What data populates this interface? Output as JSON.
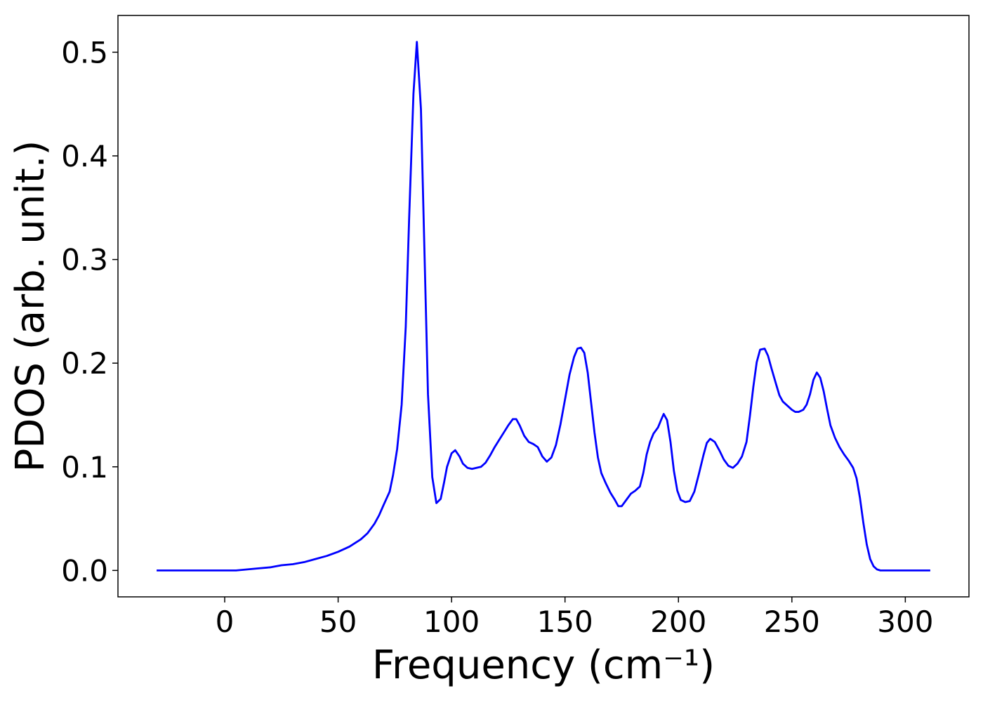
{
  "chart_data": {
    "type": "line",
    "xlabel": "Frequency (cm⁻¹)",
    "ylabel": "PDOS (arb. unit.)",
    "x": [
      -30,
      -20,
      -10,
      0,
      5,
      10,
      15,
      20,
      25,
      30,
      35,
      40,
      45,
      50,
      55,
      60,
      63,
      66,
      68,
      70,
      72.7,
      74.2,
      76,
      78,
      79.8,
      81.3,
      83.2,
      84.7,
      86.5,
      89.6,
      91.5,
      93.3,
      95.2,
      96.7,
      98,
      100,
      101.6,
      103.5,
      105,
      107,
      109,
      111,
      113,
      115,
      117,
      119,
      121,
      123,
      125,
      127,
      128.5,
      130,
      132,
      134,
      136,
      138,
      140,
      142,
      144,
      146,
      148,
      150,
      152,
      154,
      155.5,
      157,
      158.5,
      160,
      161.5,
      163,
      164.5,
      166,
      168,
      170,
      172,
      173.5,
      175,
      177,
      179,
      181,
      183,
      184.5,
      186,
      187.5,
      189,
      191,
      192.5,
      193.5,
      195,
      196.5,
      198,
      199.5,
      201,
      203,
      205,
      207,
      209,
      211,
      212.5,
      214,
      216,
      218,
      220,
      222,
      224,
      226,
      228,
      230,
      231.5,
      233,
      234.5,
      236,
      238,
      239.5,
      241,
      243,
      244.5,
      246,
      248,
      250,
      251.5,
      253,
      255,
      256.5,
      258,
      259.5,
      261,
      262.5,
      264,
      265.5,
      267,
      269,
      271,
      273,
      275,
      277,
      278.5,
      280,
      281.5,
      283,
      284.5,
      286,
      287.5,
      289,
      300,
      311
    ],
    "series": [
      {
        "name": "PDOS",
        "color": "#0000ff",
        "values": [
          0,
          0,
          0,
          0,
          0,
          0.001,
          0.002,
          0.003,
          0.005,
          0.006,
          0.008,
          0.011,
          0.014,
          0.018,
          0.023,
          0.03,
          0.036,
          0.045,
          0.053,
          0.063,
          0.076,
          0.092,
          0.117,
          0.16,
          0.235,
          0.34,
          0.46,
          0.51,
          0.445,
          0.17,
          0.09,
          0.065,
          0.069,
          0.085,
          0.1,
          0.113,
          0.116,
          0.11,
          0.103,
          0.099,
          0.098,
          0.099,
          0.1,
          0.104,
          0.111,
          0.119,
          0.126,
          0.133,
          0.14,
          0.146,
          0.146,
          0.14,
          0.13,
          0.124,
          0.122,
          0.119,
          0.11,
          0.105,
          0.109,
          0.121,
          0.141,
          0.165,
          0.189,
          0.206,
          0.214,
          0.215,
          0.21,
          0.191,
          0.162,
          0.133,
          0.109,
          0.094,
          0.084,
          0.075,
          0.068,
          0.062,
          0.062,
          0.068,
          0.074,
          0.077,
          0.081,
          0.094,
          0.112,
          0.124,
          0.132,
          0.138,
          0.146,
          0.151,
          0.145,
          0.124,
          0.096,
          0.077,
          0.068,
          0.066,
          0.067,
          0.076,
          0.093,
          0.111,
          0.123,
          0.127,
          0.124,
          0.116,
          0.107,
          0.101,
          0.099,
          0.103,
          0.11,
          0.124,
          0.149,
          0.177,
          0.201,
          0.213,
          0.214,
          0.207,
          0.195,
          0.18,
          0.169,
          0.163,
          0.159,
          0.155,
          0.153,
          0.153,
          0.155,
          0.16,
          0.17,
          0.184,
          0.191,
          0.186,
          0.173,
          0.156,
          0.14,
          0.128,
          0.119,
          0.112,
          0.106,
          0.099,
          0.089,
          0.07,
          0.046,
          0.025,
          0.011,
          0.004,
          0.001,
          0,
          0,
          0
        ]
      }
    ],
    "xlim": [
      -47.05,
      328.05
    ],
    "xticks": [
      0,
      50,
      100,
      150,
      200,
      250,
      300
    ],
    "ylim": [
      -0.0255,
      0.5355
    ],
    "yticks": [
      {
        "value": 0,
        "label": "0.0"
      },
      0.1,
      0.2,
      0.3,
      0.4,
      0.5
    ],
    "grid": false
  }
}
